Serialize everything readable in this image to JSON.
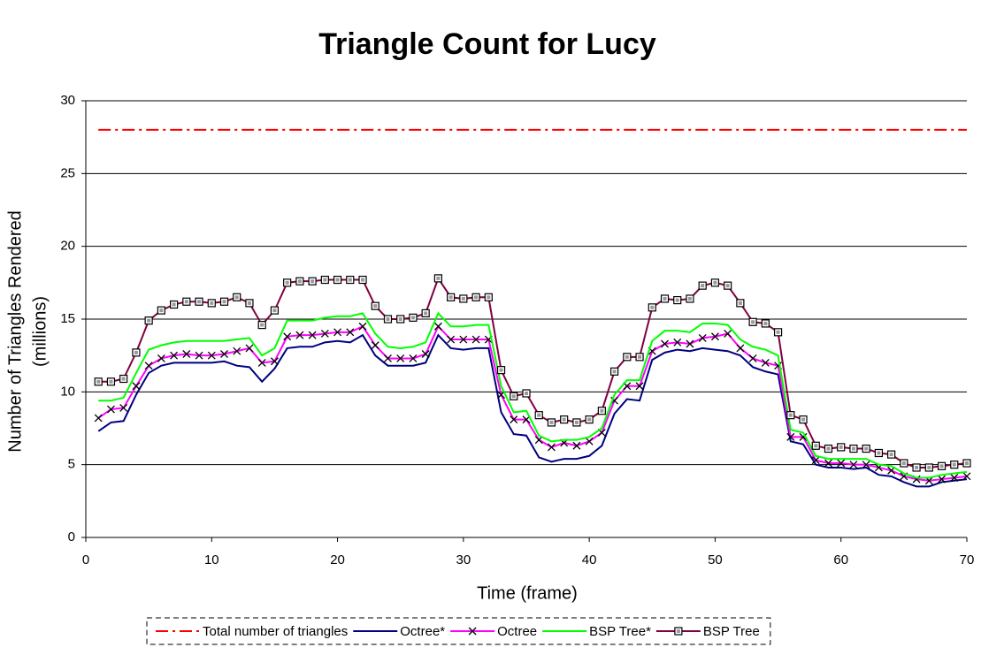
{
  "chart_data": {
    "type": "line",
    "title": "Triangle Count for Lucy",
    "xlabel": "Time (frame)",
    "ylabel": [
      "Number of Triangles Rendered",
      "(millions)"
    ],
    "x": [
      1,
      2,
      3,
      4,
      5,
      6,
      7,
      8,
      9,
      10,
      11,
      12,
      13,
      14,
      15,
      16,
      17,
      18,
      19,
      20,
      21,
      22,
      23,
      24,
      25,
      26,
      27,
      28,
      29,
      30,
      31,
      32,
      33,
      34,
      35,
      36,
      37,
      38,
      39,
      40,
      41,
      42,
      43,
      44,
      45,
      46,
      47,
      48,
      49,
      50,
      51,
      52,
      53,
      54,
      55,
      56,
      57,
      58,
      59,
      60,
      61,
      62,
      63,
      64,
      65,
      66,
      67,
      68,
      69,
      70
    ],
    "xlim": [
      0,
      70
    ],
    "xticks": [
      0,
      10,
      20,
      30,
      40,
      50,
      60,
      70
    ],
    "ylim": [
      0,
      30
    ],
    "yticks": [
      0,
      5,
      10,
      15,
      20,
      25,
      30
    ],
    "grid": true,
    "legend": "bottom",
    "series": [
      {
        "name": "Total number of triangles",
        "color": "#ff0000",
        "dash": "dashdot",
        "marker": "none",
        "values": [
          28,
          28,
          28,
          28,
          28,
          28,
          28,
          28,
          28,
          28,
          28,
          28,
          28,
          28,
          28,
          28,
          28,
          28,
          28,
          28,
          28,
          28,
          28,
          28,
          28,
          28,
          28,
          28,
          28,
          28,
          28,
          28,
          28,
          28,
          28,
          28,
          28,
          28,
          28,
          28,
          28,
          28,
          28,
          28,
          28,
          28,
          28,
          28,
          28,
          28,
          28,
          28,
          28,
          28,
          28,
          28,
          28,
          28,
          28,
          28,
          28,
          28,
          28,
          28,
          28,
          28,
          28,
          28,
          28,
          28
        ]
      },
      {
        "name": "Octree*",
        "color": "#000080",
        "dash": "solid",
        "marker": "none",
        "values": [
          7.3,
          7.9,
          8.0,
          9.8,
          11.3,
          11.8,
          12.0,
          12.0,
          12.0,
          12.0,
          12.1,
          11.8,
          11.7,
          10.7,
          11.6,
          13.0,
          13.1,
          13.1,
          13.4,
          13.5,
          13.4,
          13.9,
          12.5,
          11.8,
          11.8,
          11.8,
          12.0,
          13.9,
          13.0,
          12.9,
          13.0,
          13.0,
          8.6,
          7.1,
          7.0,
          5.5,
          5.2,
          5.4,
          5.4,
          5.6,
          6.3,
          8.5,
          9.5,
          9.4,
          12.2,
          12.7,
          12.9,
          12.8,
          13.0,
          12.9,
          12.8,
          12.5,
          11.7,
          11.4,
          11.2,
          6.6,
          6.4,
          5.0,
          4.8,
          4.8,
          4.7,
          4.8,
          4.3,
          4.2,
          3.8,
          3.5,
          3.5,
          3.8,
          3.9,
          4.0
        ]
      },
      {
        "name": "Octree",
        "color": "#ff00ff",
        "dash": "solid",
        "marker": "x",
        "values": [
          8.2,
          8.8,
          8.9,
          10.4,
          11.8,
          12.3,
          12.5,
          12.6,
          12.5,
          12.5,
          12.6,
          12.8,
          13.0,
          12.0,
          12.1,
          13.8,
          13.9,
          13.9,
          14.0,
          14.1,
          14.1,
          14.5,
          13.2,
          12.3,
          12.3,
          12.3,
          12.6,
          14.5,
          13.6,
          13.6,
          13.6,
          13.6,
          9.8,
          8.1,
          8.1,
          6.7,
          6.2,
          6.5,
          6.3,
          6.6,
          7.2,
          9.4,
          10.4,
          10.4,
          12.8,
          13.3,
          13.4,
          13.3,
          13.7,
          13.8,
          14.0,
          13.0,
          12.3,
          12.0,
          11.8,
          6.9,
          6.9,
          5.3,
          5.1,
          5.1,
          5.0,
          5.0,
          4.8,
          4.6,
          4.2,
          4.0,
          3.9,
          4.0,
          4.1,
          4.2
        ]
      },
      {
        "name": "BSP Tree*",
        "color": "#00ff00",
        "dash": "solid",
        "marker": "none",
        "values": [
          9.4,
          9.4,
          9.6,
          11.3,
          12.9,
          13.2,
          13.4,
          13.5,
          13.5,
          13.5,
          13.5,
          13.6,
          13.7,
          12.5,
          13.0,
          14.9,
          14.9,
          14.9,
          15.1,
          15.2,
          15.2,
          15.4,
          14.0,
          13.1,
          13.0,
          13.1,
          13.4,
          15.4,
          14.5,
          14.5,
          14.6,
          14.6,
          10.4,
          8.6,
          8.7,
          7.0,
          6.6,
          6.7,
          6.7,
          6.9,
          7.5,
          9.8,
          10.8,
          10.8,
          13.5,
          14.2,
          14.2,
          14.1,
          14.7,
          14.7,
          14.6,
          13.6,
          13.1,
          12.9,
          12.5,
          7.4,
          7.2,
          5.6,
          5.4,
          5.4,
          5.4,
          5.4,
          5.0,
          4.9,
          4.4,
          4.1,
          4.1,
          4.3,
          4.4,
          4.5
        ]
      },
      {
        "name": "BSP Tree",
        "color": "#800040",
        "dash": "solid",
        "marker": "square",
        "values": [
          10.7,
          10.7,
          10.9,
          12.7,
          14.9,
          15.6,
          16.0,
          16.2,
          16.2,
          16.1,
          16.2,
          16.5,
          16.1,
          14.6,
          15.6,
          17.5,
          17.6,
          17.6,
          17.7,
          17.7,
          17.7,
          17.7,
          15.9,
          15.0,
          15.0,
          15.1,
          15.4,
          17.8,
          16.5,
          16.4,
          16.5,
          16.5,
          11.5,
          9.7,
          9.9,
          8.4,
          7.9,
          8.1,
          7.9,
          8.1,
          8.7,
          11.4,
          12.4,
          12.4,
          15.8,
          16.4,
          16.3,
          16.4,
          17.3,
          17.5,
          17.3,
          16.1,
          14.8,
          14.7,
          14.1,
          8.4,
          8.1,
          6.3,
          6.1,
          6.2,
          6.1,
          6.1,
          5.8,
          5.7,
          5.1,
          4.8,
          4.8,
          4.9,
          5.0,
          5.1
        ]
      }
    ]
  }
}
